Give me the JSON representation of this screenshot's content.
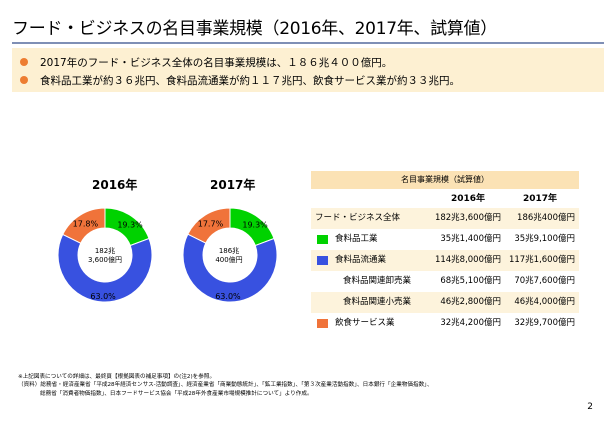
{
  "title": "フード・ビジネスの名目事業規模（2016年、2017年、試算値）",
  "summary": [
    "2017年のフード・ビジネス全体の名目事業規模は、１８６兆４００億円。",
    "食料品工業が約３６兆円、食料品流通業が約１１７兆円、飲食サービス業が約３３兆円。"
  ],
  "colors": {
    "food_industry": "#00d200",
    "distribution": "#3851e0",
    "food_service": "#f0733a",
    "accent": "#ed7d31",
    "rule": "#7f8fb5"
  },
  "chart_data": [
    {
      "type": "pie",
      "title": "2016年",
      "center_label": [
        "182兆",
        "3,600億円"
      ],
      "categories": [
        "食料品工業",
        "食料品流通業",
        "飲食サービス業"
      ],
      "values": [
        19.3,
        63.0,
        17.8
      ],
      "value_labels": [
        "19.3%",
        "63.0%",
        "17.8%"
      ]
    },
    {
      "type": "pie",
      "title": "2017年",
      "center_label": [
        "186兆",
        "400億円"
      ],
      "categories": [
        "食料品工業",
        "食料品流通業",
        "飲食サービス業"
      ],
      "values": [
        19.3,
        63.0,
        17.7
      ],
      "value_labels": [
        "19.3%",
        "63.0%",
        "17.7%"
      ]
    }
  ],
  "table": {
    "header": "名目事業規模（試算値）",
    "years": [
      "2016年",
      "2017年"
    ],
    "rows": [
      {
        "label": "フード・ビジネス全体",
        "v2016": "182兆3,600億円",
        "v2017": "186兆400億円",
        "swatch": ""
      },
      {
        "label": "食料品工業",
        "v2016": "35兆1,400億円",
        "v2017": "35兆9,100億円",
        "swatch": "food_industry"
      },
      {
        "label": "食料品流通業",
        "v2016": "114兆8,000億円",
        "v2017": "117兆1,600億円",
        "swatch": "distribution"
      },
      {
        "label": "食料品関連卸売業",
        "v2016": "68兆5,100億円",
        "v2017": "70兆7,600億円",
        "swatch": ""
      },
      {
        "label": "食料品関連小売業",
        "v2016": "46兆2,800億円",
        "v2017": "46兆4,000億円",
        "swatch": ""
      },
      {
        "label": "飲食サービス業",
        "v2016": "32兆4,200億円",
        "v2017": "32兆9,700億円",
        "swatch": "food_service"
      }
    ]
  },
  "notes": [
    "※上記図表についての詳細は、最終頁【根拠図表の補足事項】の(注2)を参照。",
    "（資料）総務省・経済産業省「平成28年経済センサス-活動調査」、経済産業省「商業動態統計」、「鉱工業指数」、「第３次産業活動指数」、日本銀行「企業物価指数」、",
    "総務省「消費者物価指数」、日本フードサービス協会「平成28年外食産業市場規模推計について」より作成。"
  ],
  "page_number": "2"
}
